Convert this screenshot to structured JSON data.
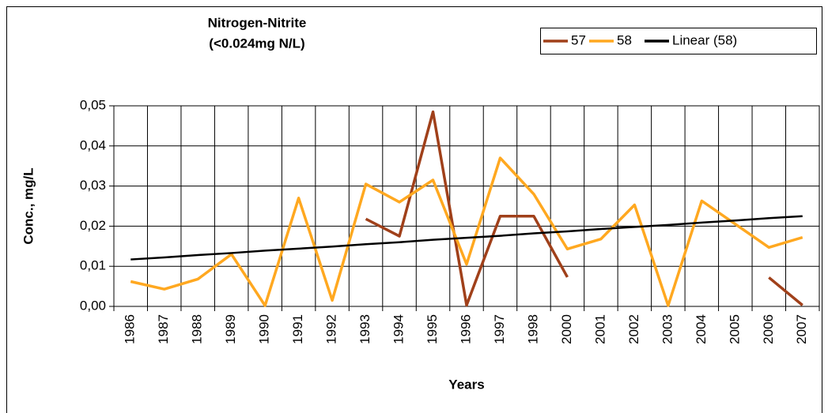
{
  "chart_data": {
    "type": "line",
    "title": "Nitrogen-Nitrite",
    "subtitle": "(<0.024mg N/L)",
    "x_label": "Years",
    "y_label": "Conc., mg/L",
    "categories": [
      "1986",
      "1987",
      "1988",
      "1989",
      "1990",
      "1991",
      "1992",
      "1993",
      "1994",
      "1995",
      "1996",
      "1997",
      "1998",
      "2000",
      "2001",
      "2002",
      "2003",
      "2004",
      "2005",
      "2006",
      "2007"
    ],
    "series": [
      {
        "name": "57",
        "color": "#a0401a",
        "values": [
          null,
          null,
          null,
          null,
          null,
          null,
          null,
          0.0218,
          0.0175,
          0.0485,
          0.0003,
          0.0225,
          0.0225,
          0.0073,
          null,
          null,
          null,
          null,
          null,
          0.0072,
          0.0003
        ]
      },
      {
        "name": "58",
        "color": "#ffa820",
        "values": [
          0.0062,
          0.0043,
          0.0068,
          0.013,
          0.0002,
          0.027,
          0.0015,
          0.0305,
          0.026,
          0.0315,
          0.0105,
          0.037,
          0.028,
          0.0143,
          0.0168,
          0.0253,
          0.0002,
          0.0263,
          0.0205,
          0.0147,
          0.0172
        ]
      },
      {
        "name": "Linear (58)",
        "color": "#000000",
        "values": [
          0.0117,
          0.0122,
          0.0128,
          0.0133,
          0.0139,
          0.0144,
          0.0149,
          0.0155,
          0.016,
          0.0166,
          0.0171,
          0.0176,
          0.0182,
          0.0187,
          0.0193,
          0.0198,
          0.0203,
          0.0209,
          0.0214,
          0.022,
          0.0225
        ]
      }
    ],
    "ylim": [
      0,
      0.05
    ],
    "yticks": [
      {
        "value": 0,
        "label": "0,00"
      },
      {
        "value": 0.01,
        "label": "0,01"
      },
      {
        "value": 0.02,
        "label": "0,02"
      },
      {
        "value": 0.03,
        "label": "0,03"
      },
      {
        "value": 0.04,
        "label": "0,04"
      },
      {
        "value": 0.05,
        "label": "0,05"
      }
    ],
    "grid": true,
    "legend": "top-right"
  }
}
